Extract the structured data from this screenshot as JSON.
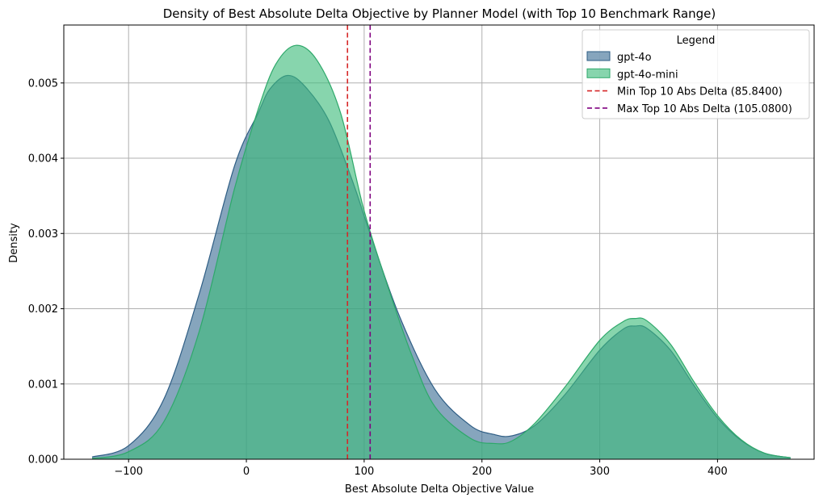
{
  "chart_data": {
    "type": "area",
    "title": "Density of Best Absolute Delta Objective by Planner Model (with Top 10 Benchmark Range)",
    "xlabel": "Best Absolute Delta Objective Value",
    "ylabel": "Density",
    "xlim": [
      -155,
      482
    ],
    "ylim": [
      0,
      0.00577
    ],
    "x_ticks": [
      -100,
      0,
      100,
      200,
      300,
      400
    ],
    "x_tick_labels": [
      "−100",
      "0",
      "100",
      "200",
      "300",
      "400"
    ],
    "y_ticks": [
      0,
      0.001,
      0.002,
      0.003,
      0.004,
      0.005
    ],
    "y_tick_labels": [
      "0.000",
      "0.001",
      "0.002",
      "0.003",
      "0.004",
      "0.005"
    ],
    "grid": true,
    "legend": {
      "title": "Legend",
      "placement": "top-right",
      "entries": [
        {
          "label": "gpt-4o",
          "kind": "patch",
          "series": 0
        },
        {
          "label": "gpt-4o-mini",
          "kind": "patch",
          "series": 1
        },
        {
          "label": "Min Top 10 Abs Delta (85.8400)",
          "kind": "line",
          "vline": 0
        },
        {
          "label": "Max Top 10 Abs Delta (105.0800)",
          "kind": "line",
          "vline": 1
        }
      ]
    },
    "series": [
      {
        "name": "gpt-4o",
        "fill": "#3b6e94",
        "stroke": "#2e5d84",
        "x": [
          -131,
          -100,
          -70,
          -40,
          -10,
          10,
          20,
          35,
          50,
          70,
          90,
          105,
          130,
          160,
          190,
          210,
          225,
          245,
          270,
          300,
          320,
          330,
          340,
          360,
          380,
          400,
          420,
          440,
          462
        ],
        "y": [
          3e-05,
          0.00018,
          0.0008,
          0.0022,
          0.0039,
          0.0046,
          0.00492,
          0.0051,
          0.00495,
          0.0045,
          0.0037,
          0.003,
          0.0019,
          0.00093,
          0.00045,
          0.00033,
          0.00031,
          0.00045,
          0.00085,
          0.00145,
          0.00173,
          0.00177,
          0.00174,
          0.00145,
          0.00098,
          0.00055,
          0.00025,
          8e-05,
          2e-05
        ]
      },
      {
        "name": "gpt-4o-mini",
        "fill": "#3dbb7a",
        "stroke": "#2ea86a",
        "x": [
          -131,
          -100,
          -70,
          -40,
          -10,
          10,
          25,
          42,
          60,
          80,
          100,
          120,
          140,
          160,
          190,
          210,
          225,
          245,
          270,
          300,
          320,
          330,
          340,
          360,
          380,
          400,
          420,
          440,
          462
        ],
        "y": [
          1e-05,
          0.0001,
          0.0005,
          0.0017,
          0.0036,
          0.00465,
          0.00525,
          0.0055,
          0.0053,
          0.0046,
          0.0033,
          0.0023,
          0.0014,
          0.0007,
          0.00028,
          0.00021,
          0.00024,
          0.00048,
          0.00095,
          0.00158,
          0.00183,
          0.00187,
          0.00184,
          0.00153,
          0.00103,
          0.00058,
          0.00026,
          8e-05,
          2e-05
        ]
      }
    ],
    "vlines": [
      {
        "label": "Min Top 10 Abs Delta (85.8400)",
        "x": 85.84,
        "color": "#d62728"
      },
      {
        "label": "Max Top 10 Abs Delta (105.0800)",
        "x": 105.08,
        "color": "#800080"
      }
    ]
  }
}
